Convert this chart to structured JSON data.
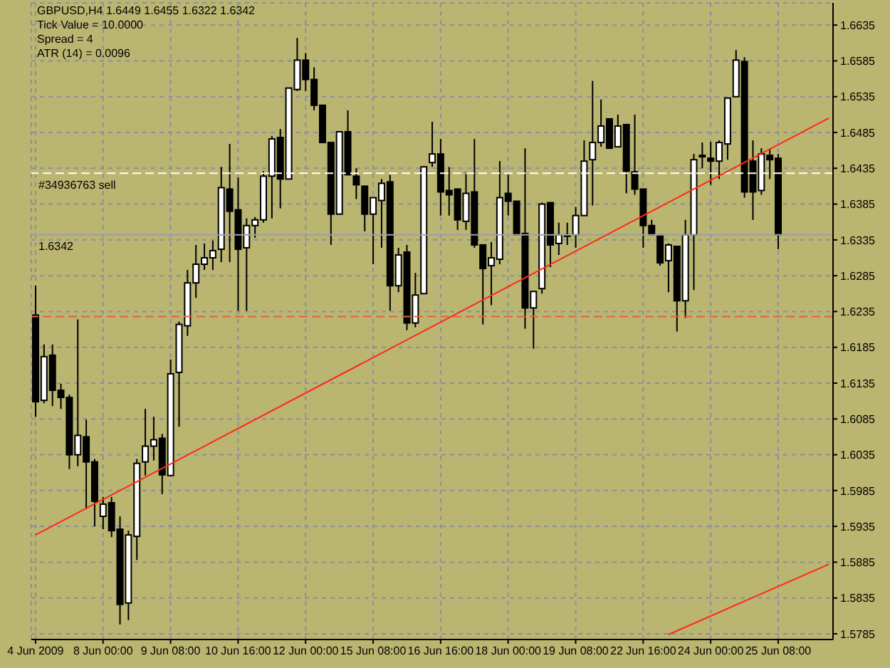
{
  "chart_data": {
    "type": "candlestick",
    "title": "GBPUSD,H4 1.6449 1.6455 1.6322 1.6342",
    "annotations": [
      "Tick Value = 10.0000",
      "Spread = 4",
      "ATR (14) = 0.0096"
    ],
    "color": "#000000",
    "categories": [
      "4 Jun 2009",
      null,
      null,
      null,
      null,
      null,
      null,
      null,
      "8 Jun 00:00",
      null,
      null,
      null,
      null,
      null,
      null,
      null,
      "9 Jun 08:00",
      null,
      null,
      null,
      null,
      null,
      null,
      null,
      "10 Jun 16:00",
      null,
      null,
      null,
      null,
      null,
      null,
      null,
      "12 Jun 00:00",
      null,
      null,
      null,
      null,
      null,
      null,
      null,
      "15 Jun 08:00",
      null,
      null,
      null,
      null,
      null,
      null,
      null,
      "16 Jun 16:00",
      null,
      null,
      null,
      null,
      null,
      null,
      null,
      "18 Jun 00:00",
      null,
      null,
      null,
      null,
      null,
      null,
      null,
      "19 Jun 08:00",
      null,
      null,
      null,
      null,
      null,
      null,
      null,
      "22 Jun 16:00",
      null,
      null,
      null,
      null,
      null,
      null,
      null,
      "24 Jun 00:00",
      null,
      null,
      null,
      null,
      null,
      null,
      null,
      "25 Jun 08:00",
      null,
      null,
      null,
      null,
      null,
      null
    ],
    "ohlc": [
      [
        1.623,
        1.6271,
        1.6088,
        1.6109
      ],
      [
        1.6111,
        1.6189,
        1.6107,
        1.6172
      ],
      [
        1.6174,
        1.6189,
        1.6103,
        1.6125
      ],
      [
        1.6125,
        1.6134,
        1.6099,
        1.6115
      ],
      [
        1.6115,
        1.6119,
        1.6015,
        1.6035
      ],
      [
        1.6035,
        1.6224,
        1.6019,
        1.6062
      ],
      [
        1.606,
        1.6084,
        1.5959,
        1.6025
      ],
      [
        1.6025,
        1.6029,
        1.5935,
        1.597
      ],
      [
        1.5949,
        1.5976,
        1.5931,
        1.5966
      ],
      [
        1.5968,
        1.5976,
        1.592,
        1.5929
      ],
      [
        1.5931,
        1.5949,
        1.5798,
        1.5826
      ],
      [
        1.5828,
        1.5929,
        1.5804,
        1.5923
      ],
      [
        1.5921,
        1.6029,
        1.5888,
        1.6023
      ],
      [
        1.6025,
        1.6099,
        1.6006,
        1.6047
      ],
      [
        1.6047,
        1.6088,
        1.6027,
        1.6056
      ],
      [
        1.6058,
        1.6064,
        1.598,
        1.6007
      ],
      [
        1.6006,
        1.6168,
        1.6006,
        1.6148
      ],
      [
        1.615,
        1.6221,
        1.6074,
        1.6217
      ],
      [
        1.6215,
        1.6293,
        1.6201,
        1.6275
      ],
      [
        1.6275,
        1.6328,
        1.6254,
        1.6301
      ],
      [
        1.6301,
        1.633,
        1.6293,
        1.631
      ],
      [
        1.631,
        1.6334,
        1.6293,
        1.632
      ],
      [
        1.6322,
        1.6437,
        1.6304,
        1.6408
      ],
      [
        1.6406,
        1.6469,
        1.6304,
        1.6375
      ],
      [
        1.6377,
        1.6422,
        1.6236,
        1.6322
      ],
      [
        1.6324,
        1.6365,
        1.6236,
        1.6355
      ],
      [
        1.6355,
        1.6367,
        1.6338,
        1.6363
      ],
      [
        1.6363,
        1.6431,
        1.6359,
        1.6424
      ],
      [
        1.6424,
        1.648,
        1.6365,
        1.6476
      ],
      [
        1.6478,
        1.649,
        1.6379,
        1.642
      ],
      [
        1.642,
        1.6547,
        1.642,
        1.6547
      ],
      [
        1.6545,
        1.6617,
        1.6543,
        1.6586
      ],
      [
        1.6586,
        1.6596,
        1.6543,
        1.6559
      ],
      [
        1.6559,
        1.6576,
        1.6516,
        1.6523
      ],
      [
        1.6523,
        1.6523,
        1.6471,
        1.6471
      ],
      [
        1.6471,
        1.6471,
        1.6328,
        1.6371
      ],
      [
        1.6371,
        1.6486,
        1.6371,
        1.6486
      ],
      [
        1.6486,
        1.6516,
        1.6426,
        1.6426
      ],
      [
        1.6424,
        1.6435,
        1.6392,
        1.6412
      ],
      [
        1.641,
        1.641,
        1.6347,
        1.6371
      ],
      [
        1.6371,
        1.6394,
        1.6301,
        1.6394
      ],
      [
        1.639,
        1.642,
        1.6324,
        1.6414
      ],
      [
        1.6416,
        1.6426,
        1.6236,
        1.6271
      ],
      [
        1.6271,
        1.6324,
        1.6262,
        1.6314
      ],
      [
        1.6318,
        1.6328,
        1.6209,
        1.6219
      ],
      [
        1.6219,
        1.6289,
        1.6213,
        1.6258
      ],
      [
        1.626,
        1.6437,
        1.626,
        1.6437
      ],
      [
        1.6443,
        1.65,
        1.6437,
        1.6455
      ],
      [
        1.6455,
        1.6476,
        1.6369,
        1.6402
      ],
      [
        1.6404,
        1.6437,
        1.6369,
        1.6398
      ],
      [
        1.6406,
        1.6406,
        1.6349,
        1.6363
      ],
      [
        1.6361,
        1.643,
        1.6349,
        1.64
      ],
      [
        1.6402,
        1.6476,
        1.6324,
        1.6328
      ],
      [
        1.6328,
        1.6328,
        1.6217,
        1.6295
      ],
      [
        1.6299,
        1.6332,
        1.6244,
        1.631
      ],
      [
        1.6308,
        1.6445,
        1.6301,
        1.6394
      ],
      [
        1.64,
        1.6426,
        1.6369,
        1.6389
      ],
      [
        1.6389,
        1.6389,
        1.6342,
        1.6342
      ],
      [
        1.6344,
        1.6463,
        1.6211,
        1.624
      ],
      [
        1.624,
        1.6263,
        1.6183,
        1.6263
      ],
      [
        1.6267,
        1.6387,
        1.626,
        1.6385
      ],
      [
        1.6387,
        1.6387,
        1.6297,
        1.6328
      ],
      [
        1.633,
        1.6359,
        1.6314,
        1.6342
      ],
      [
        1.6342,
        1.6359,
        1.6328,
        1.6342
      ],
      [
        1.6342,
        1.6381,
        1.6324,
        1.6369
      ],
      [
        1.6369,
        1.6474,
        1.6369,
        1.6445
      ],
      [
        1.6447,
        1.6557,
        1.6383,
        1.6471
      ],
      [
        1.6471,
        1.6531,
        1.6465,
        1.6494
      ],
      [
        1.6504,
        1.6504,
        1.6463,
        1.6463
      ],
      [
        1.6465,
        1.651,
        1.6465,
        1.6494
      ],
      [
        1.6496,
        1.6496,
        1.64,
        1.6431
      ],
      [
        1.643,
        1.651,
        1.6398,
        1.6406
      ],
      [
        1.6406,
        1.6406,
        1.6324,
        1.6355
      ],
      [
        1.6355,
        1.6363,
        1.6342,
        1.6342
      ],
      [
        1.6342,
        1.6342,
        1.6299,
        1.6303
      ],
      [
        1.6306,
        1.633,
        1.6262,
        1.6328
      ],
      [
        1.6326,
        1.6326,
        1.6207,
        1.625
      ],
      [
        1.625,
        1.6363,
        1.6226,
        1.6342
      ],
      [
        1.6342,
        1.6455,
        1.6265,
        1.6447
      ],
      [
        1.6451,
        1.6471,
        1.6435,
        1.6453
      ],
      [
        1.6449,
        1.6472,
        1.6412,
        1.6445
      ],
      [
        1.6445,
        1.6474,
        1.642,
        1.6471
      ],
      [
        1.6469,
        1.6533,
        1.6447,
        1.6533
      ],
      [
        1.6535,
        1.66,
        1.6535,
        1.6586
      ],
      [
        1.6584,
        1.659,
        1.6394,
        1.6402
      ],
      [
        1.6445,
        1.6474,
        1.6363,
        1.6402
      ],
      [
        1.6404,
        1.6463,
        1.6398,
        1.6455
      ],
      [
        1.6453,
        1.6463,
        1.642,
        1.6447
      ],
      [
        1.6449,
        1.6455,
        1.6322,
        1.6342
      ],
      null,
      null,
      null,
      null,
      null,
      null
    ],
    "series": [
      {
        "type": "line",
        "color": "#ff2a1a",
        "values": [
          1.5923,
          null,
          null,
          null,
          null,
          null,
          null,
          null,
          null,
          null,
          null,
          null,
          null,
          null,
          null,
          null,
          null,
          null,
          null,
          null,
          null,
          null,
          null,
          null,
          null,
          null,
          null,
          null,
          null,
          null,
          null,
          null,
          null,
          null,
          null,
          null,
          null,
          null,
          null,
          null,
          null,
          null,
          null,
          null,
          null,
          null,
          null,
          null,
          null,
          null,
          null,
          null,
          null,
          null,
          null,
          null,
          null,
          null,
          null,
          null,
          null,
          null,
          null,
          null,
          null,
          null,
          null,
          null,
          null,
          null,
          null,
          null,
          null,
          null,
          null,
          null,
          null,
          null,
          null,
          null,
          null,
          null,
          null,
          null,
          null,
          null,
          null,
          null,
          null,
          null,
          null,
          null,
          null,
          null,
          1.6505
        ]
      },
      {
        "type": "line",
        "color": "#ff2a1a",
        "values": [
          null,
          null,
          null,
          null,
          null,
          null,
          null,
          null,
          null,
          null,
          null,
          null,
          null,
          null,
          null,
          null,
          null,
          null,
          null,
          null,
          null,
          null,
          null,
          null,
          null,
          null,
          null,
          null,
          null,
          null,
          null,
          null,
          null,
          null,
          null,
          null,
          null,
          null,
          null,
          null,
          null,
          null,
          null,
          null,
          null,
          null,
          null,
          null,
          null,
          null,
          null,
          null,
          null,
          null,
          null,
          null,
          null,
          null,
          null,
          null,
          null,
          null,
          null,
          null,
          null,
          null,
          null,
          null,
          null,
          null,
          null,
          null,
          null,
          null,
          null,
          1.5784,
          null,
          null,
          null,
          null,
          null,
          null,
          null,
          null,
          null,
          null,
          null,
          null,
          null,
          null,
          null,
          null,
          null,
          null,
          1.5882
        ]
      }
    ],
    "ylim": [
      1.5777,
      1.6666
    ],
    "yticks": [
      1.5785,
      1.5835,
      1.5885,
      1.5935,
      1.5985,
      1.6035,
      1.6085,
      1.6135,
      1.6185,
      1.6235,
      1.6285,
      1.6335,
      1.6385,
      1.6435,
      1.6485,
      1.6535,
      1.6585,
      1.6635
    ],
    "grid": true,
    "ref_lines": [
      {
        "axis": "y",
        "value": 1.6428,
        "label": "#34936763 sell",
        "color": "#ffffff",
        "line_style": "dashed"
      },
      {
        "axis": "y",
        "value": 1.6228,
        "color": "#e8603c",
        "line_style": "dashed"
      },
      {
        "axis": "y",
        "value": 1.6342,
        "label": "1.6342",
        "color": "#9aa0ae",
        "line_style": "solid"
      }
    ]
  }
}
